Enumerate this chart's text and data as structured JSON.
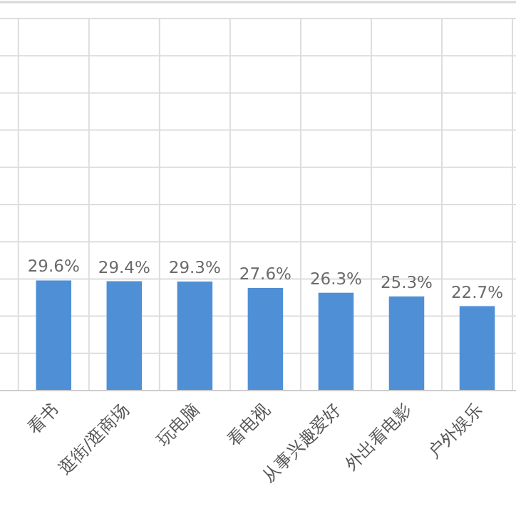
{
  "chart_data": {
    "type": "bar",
    "categories": [
      "看书",
      "逛街/逛商场",
      "玩电脑",
      "看电视",
      "从事兴趣爱好",
      "外出看电影",
      "户外娱乐"
    ],
    "values": [
      29.6,
      29.4,
      29.3,
      27.6,
      26.3,
      25.3,
      22.7
    ],
    "value_labels": [
      "29.6%",
      "29.4%",
      "29.3%",
      "27.6%",
      "26.3%",
      "25.3%",
      "22.7%"
    ],
    "color": "#4f8fd6",
    "tick_labels": "x",
    "grid": true
  }
}
